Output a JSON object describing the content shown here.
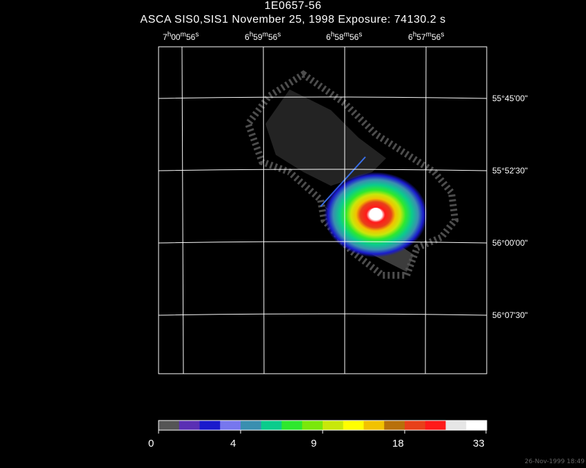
{
  "title": "1E0657-56",
  "subtitle": "ASCA SIS0,SIS1 November 25, 1998 Exposure: 74130.2 s",
  "ra_labels": [
    {
      "h": "7",
      "m": "00",
      "s": "56"
    },
    {
      "h": "6",
      "m": "59",
      "s": "56"
    },
    {
      "h": "6",
      "m": "58",
      "s": "56"
    },
    {
      "h": "6",
      "m": "57",
      "s": "56"
    }
  ],
  "dec_labels": [
    "55°45'00\"",
    "55°52'30\"",
    "56°00'00\"",
    "56°07'30\""
  ],
  "colorbar": {
    "tick_labels": [
      "0",
      "4",
      "9",
      "18",
      "33"
    ],
    "colors": [
      "#555555",
      "#5a2fb4",
      "#1a1acc",
      "#7777ee",
      "#3a8fb0",
      "#0acc8c",
      "#2ee82e",
      "#7ae80a",
      "#c8e80a",
      "#ffff00",
      "#f2c200",
      "#b8700a",
      "#e8401a",
      "#ff1a1a",
      "#e6e6e6",
      "#ffffff"
    ]
  },
  "footer": "26-Nov-1999 18:49"
}
